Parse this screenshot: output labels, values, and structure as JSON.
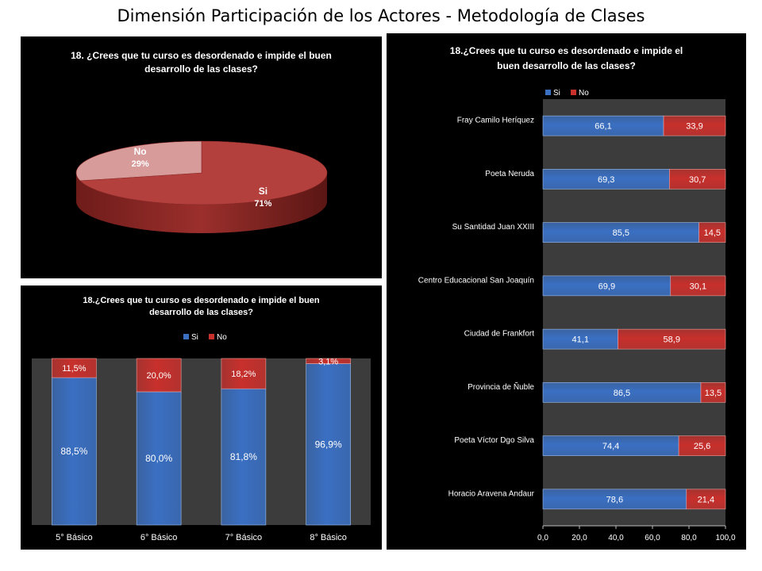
{
  "page": {
    "title": "Dimensión Participación de los Actores - Metodología de Clases"
  },
  "colors": {
    "si": "#3a6fc2",
    "no": "#c8302c",
    "pie_si": "#b4403d",
    "pie_no": "#d79b9a",
    "plot_bg": "#3c3c3c",
    "panel_bg": "#000000"
  },
  "chart_data": [
    {
      "type": "pie",
      "title": [
        "18. ¿Crees que tu curso es desordenado e impide el buen",
        "desarrollo de las clases?"
      ],
      "slices": [
        {
          "name": "Si",
          "value": 71,
          "label": "71%"
        },
        {
          "name": "No",
          "value": 29,
          "label": "29%"
        }
      ]
    },
    {
      "type": "bar",
      "stacked": true,
      "title": [
        "18.¿Crees que tu curso es desordenado e impide el buen",
        "desarrollo de las clases?"
      ],
      "legend": [
        "Si",
        "No"
      ],
      "legend_position": "top",
      "categories": [
        "5° Básico",
        "6° Básico",
        "7° Básico",
        "8° Básico"
      ],
      "series": [
        {
          "name": "Si",
          "values": [
            88.5,
            80.0,
            81.8,
            96.9
          ],
          "labels": [
            "88,5%",
            "80,0%",
            "81,8%",
            "96,9%"
          ]
        },
        {
          "name": "No",
          "values": [
            11.5,
            20.0,
            18.2,
            3.1
          ],
          "labels": [
            "11,5%",
            "20,0%",
            "18,2%",
            "3,1%"
          ]
        }
      ],
      "ylim": [
        0,
        100
      ]
    },
    {
      "type": "bar",
      "orientation": "horizontal",
      "stacked": true,
      "title": [
        "18.¿Crees que tu curso es desordenado e impide el",
        "buen desarrollo de las clases?"
      ],
      "legend": [
        "Si",
        "No"
      ],
      "legend_position": "top",
      "categories": [
        "Fray Camilo Heríquez",
        "Poeta Neruda",
        "Su Santidad Juan XXIII",
        "Centro Educacional San Joaquín",
        "Ciudad de Frankfort",
        "Provincia de Ñuble",
        "Poeta Víctor Dgo Silva",
        "Horacio Aravena Andaur"
      ],
      "series": [
        {
          "name": "Si",
          "values": [
            66.1,
            69.3,
            85.5,
            69.9,
            41.1,
            86.5,
            74.4,
            78.6
          ],
          "labels": [
            "66,1",
            "69,3",
            "85,5",
            "69,9",
            "41,1",
            "86,5",
            "74,4",
            "78,6"
          ]
        },
        {
          "name": "No",
          "values": [
            33.9,
            30.7,
            14.5,
            30.1,
            58.9,
            13.5,
            25.6,
            21.4
          ],
          "labels": [
            "33,9",
            "30,7",
            "14,5",
            "30,1",
            "58,9",
            "13,5",
            "25,6",
            "21,4"
          ]
        }
      ],
      "xlim": [
        0,
        100
      ],
      "xticks": [
        0,
        20,
        40,
        60,
        80,
        100
      ],
      "xtick_labels": [
        "0,0",
        "20,0",
        "40,0",
        "60,0",
        "80,0",
        "100,0"
      ],
      "grid": false
    }
  ]
}
